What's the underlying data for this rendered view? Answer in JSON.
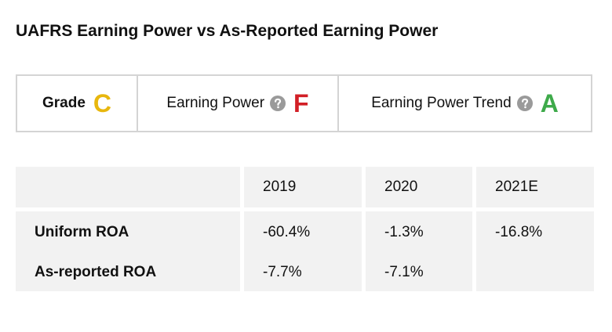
{
  "title": "UAFRS Earning Power vs As-Reported Earning Power",
  "grade_panel": {
    "grade_label": "Grade",
    "grade_value": "C",
    "earning_power_label": "Earning Power",
    "earning_power_value": "F",
    "earning_power_trend_label": "Earning Power Trend",
    "earning_power_trend_value": "A",
    "help_icon": "question-mark-circle-icon"
  },
  "colors": {
    "grade_c": "#e8b70e",
    "grade_f": "#d21f26",
    "grade_a": "#3eaa4a",
    "help_icon": "#9a9a9a",
    "cell_background": "#f2f2f2",
    "panel_border": "#d4d4d4"
  },
  "table": {
    "columns": [
      "",
      "2019",
      "2020",
      "2021E"
    ],
    "rows": [
      {
        "label": "Uniform ROA",
        "values": [
          "-60.4%",
          "-1.3%",
          "-16.8%"
        ]
      },
      {
        "label": "As-reported ROA",
        "values": [
          "-7.7%",
          "-7.1%",
          ""
        ]
      }
    ]
  }
}
